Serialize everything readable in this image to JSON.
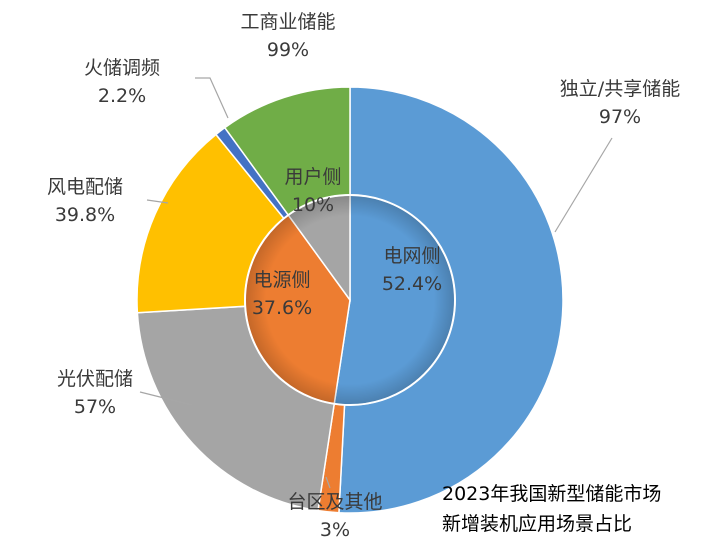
{
  "chart_data": {
    "type": "pie",
    "subtype": "nested-donut",
    "title_lines": [
      "2023年我国新型储能市场",
      "新增装机应用场景占比"
    ],
    "inner_ring": [
      {
        "name": "电网侧",
        "value": 52.4,
        "label": "52.4%",
        "color": "#5b9bd5"
      },
      {
        "name": "电源侧",
        "value": 37.6,
        "label": "37.6%",
        "color": "#ed7d31"
      },
      {
        "name": "用户侧",
        "value": 10,
        "label": "10%",
        "color": "#a5a5a5"
      }
    ],
    "outer_ring": [
      {
        "name": "独立/共享储能",
        "value": 97,
        "label": "97%",
        "parent": "电网侧",
        "color": "#5b9bd5"
      },
      {
        "name": "台区及其他",
        "value": 3,
        "label": "3%",
        "parent": "电网侧",
        "color": "#ed7d31"
      },
      {
        "name": "光伏配储",
        "value": 57,
        "label": "57%",
        "parent": "电源侧",
        "color": "#a5a5a5"
      },
      {
        "name": "风电配储",
        "value": 39.8,
        "label": "39.8%",
        "parent": "电源侧",
        "color": "#ffc000"
      },
      {
        "name": "火储调频",
        "value": 2.2,
        "label": "2.2%",
        "parent": "电源侧",
        "color": "#4472c4"
      },
      {
        "name": "工商业储能",
        "value": 99,
        "label": "99%",
        "parent": "用户侧",
        "color": "#70ad47"
      }
    ]
  }
}
